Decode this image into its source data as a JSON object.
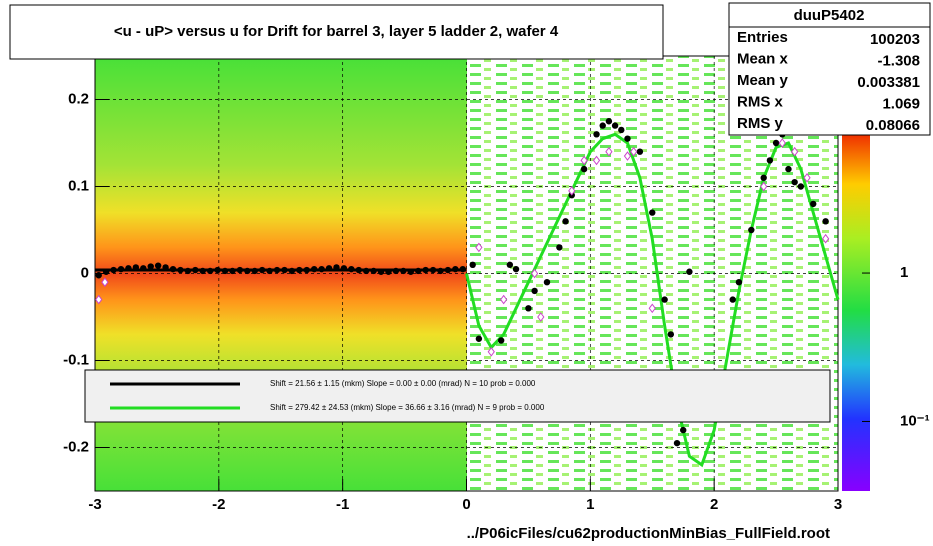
{
  "chart_data": {
    "type": "profile2d",
    "title": "<u - uP>       versus   u for Drift for barrel 3, layer 5 ladder 2, wafer 4",
    "source": "../P06icFiles/cu62productionMinBias_FullField.root",
    "xlim": [
      -3,
      3
    ],
    "xticks": [
      -3,
      -2,
      -1,
      0,
      1,
      2,
      3
    ],
    "ylim": [
      -0.25,
      0.25
    ],
    "yticks": [
      -0.2,
      -0.1,
      0,
      0.1,
      0.2
    ],
    "grid": true,
    "zlim": [
      0.034,
      29
    ],
    "zlog": true,
    "zticks": [
      1,
      {
        "value": 0.1,
        "label": "10⁻¹"
      }
    ],
    "stats": {
      "title": "duuP5402",
      "rows": [
        {
          "label": "Entries",
          "value": 100203
        },
        {
          "label": "Mean x",
          "value": -1.308
        },
        {
          "label": "Mean y",
          "value": 0.003381
        },
        {
          "label": "RMS x",
          "value": 1.069
        },
        {
          "label": "RMS y",
          "value": 0.08066
        }
      ]
    },
    "fits": [
      {
        "name": "Shift =    21.56 ± 1.15 (mkm) Slope =    0.00 ± 0.00 (mrad)  N = 10 prob = 0.000",
        "color": "#000000",
        "x": [
          -3,
          0
        ],
        "y": [
          0.004,
          0.004
        ]
      },
      {
        "name": "Shift =   279.42 ± 24.53 (mkm) Slope =    36.66 ± 3.16 (mrad)  N = 9 prob = 0.000",
        "color": "#22dd22",
        "x": [
          0,
          0.1,
          0.2,
          0.3,
          0.4,
          0.5,
          0.6,
          0.7,
          0.8,
          0.9,
          1.0,
          1.1,
          1.2,
          1.3,
          1.4,
          1.5,
          1.6,
          1.7,
          1.8,
          1.9,
          2.0,
          2.1,
          2.2,
          2.3,
          2.4,
          2.5,
          2.6,
          2.7,
          2.8,
          2.9,
          3.0
        ],
        "y": [
          0.0,
          -0.06,
          -0.085,
          -0.07,
          -0.04,
          -0.01,
          0.02,
          0.05,
          0.08,
          0.11,
          0.14,
          0.155,
          0.16,
          0.15,
          0.11,
          0.04,
          -0.06,
          -0.15,
          -0.21,
          -0.22,
          -0.18,
          -0.1,
          -0.02,
          0.05,
          0.11,
          0.145,
          0.15,
          0.12,
          0.07,
          0.02,
          -0.03
        ]
      }
    ],
    "profiles": [
      {
        "color": "#000000",
        "marker": "circle",
        "x": [
          -2.97,
          -2.91,
          -2.85,
          -2.79,
          -2.73,
          -2.67,
          -2.61,
          -2.55,
          -2.49,
          -2.43,
          -2.37,
          -2.31,
          -2.25,
          -2.19,
          -2.13,
          -2.07,
          -2.01,
          -1.95,
          -1.89,
          -1.83,
          -1.77,
          -1.71,
          -1.65,
          -1.59,
          -1.53,
          -1.47,
          -1.41,
          -1.35,
          -1.29,
          -1.23,
          -1.17,
          -1.11,
          -1.05,
          -0.99,
          -0.93,
          -0.87,
          -0.81,
          -0.75,
          -0.69,
          -0.63,
          -0.57,
          -0.51,
          -0.45,
          -0.39,
          -0.33,
          -0.27,
          -0.21,
          -0.15,
          -0.09,
          -0.03,
          0.05,
          0.1,
          0.28,
          0.35,
          0.4,
          0.5,
          0.55,
          0.65,
          0.75,
          0.8,
          0.85,
          0.95,
          1.05,
          1.1,
          1.15,
          1.2,
          1.25,
          1.3,
          1.4,
          1.5,
          1.6,
          1.65,
          1.7,
          1.75,
          1.8,
          2.15,
          2.2,
          2.3,
          2.4,
          2.45,
          2.5,
          2.55,
          2.6,
          2.65,
          2.7,
          2.8,
          2.9
        ],
        "y": [
          -0.002,
          0.002,
          0.004,
          0.005,
          0.006,
          0.007,
          0.006,
          0.008,
          0.009,
          0.007,
          0.005,
          0.004,
          0.003,
          0.004,
          0.003,
          0.003,
          0.004,
          0.003,
          0.003,
          0.004,
          0.003,
          0.003,
          0.004,
          0.003,
          0.004,
          0.004,
          0.003,
          0.004,
          0.004,
          0.005,
          0.005,
          0.006,
          0.007,
          0.006,
          0.005,
          0.004,
          0.003,
          0.003,
          0.002,
          0.002,
          0.003,
          0.003,
          0.002,
          0.003,
          0.004,
          0.004,
          0.003,
          0.004,
          0.005,
          0.005,
          0.01,
          -0.075,
          -0.077,
          0.01,
          0.005,
          -0.04,
          -0.02,
          -0.01,
          0.03,
          0.06,
          0.09,
          0.12,
          0.16,
          0.17,
          0.175,
          0.17,
          0.165,
          0.155,
          0.14,
          0.07,
          -0.03,
          -0.07,
          -0.195,
          -0.18,
          0.002,
          -0.03,
          -0.01,
          0.05,
          0.11,
          0.13,
          0.15,
          0.16,
          0.12,
          0.105,
          0.1,
          0.08,
          0.06
        ]
      },
      {
        "color": "#cc44cc",
        "marker": "diamond",
        "x": [
          -2.97,
          -2.92,
          0.1,
          0.2,
          0.3,
          0.55,
          0.6,
          0.85,
          0.95,
          1.05,
          1.15,
          1.3,
          1.35,
          1.5,
          2.4,
          2.55,
          2.65,
          2.75,
          2.9
        ],
        "y": [
          -0.03,
          -0.01,
          0.03,
          -0.09,
          -0.03,
          0.0,
          -0.05,
          0.095,
          0.13,
          0.13,
          0.14,
          0.135,
          0.14,
          -0.04,
          0.1,
          0.15,
          0.14,
          0.11,
          0.04
        ]
      }
    ]
  }
}
